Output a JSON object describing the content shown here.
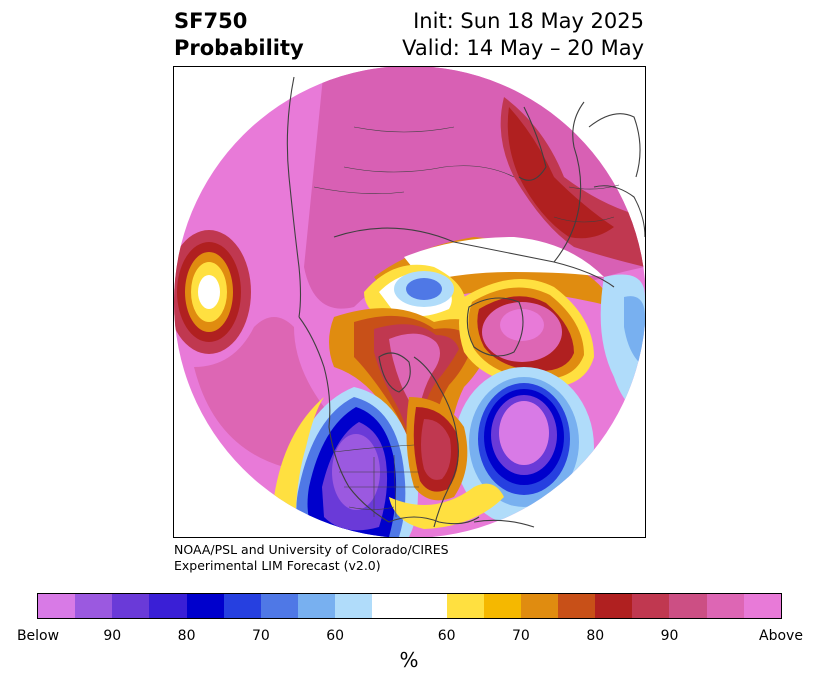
{
  "title": {
    "left_line1": "SF750",
    "left_line2": "Probability",
    "right_line1": "Init: Sun 18 May 2025",
    "right_line2": "Valid: 14 May – 20 May"
  },
  "credit": {
    "line1": "NOAA/PSL and University of Colorado/CIRES",
    "line2": "Experimental LIM Forecast (v2.0)"
  },
  "colorbar": {
    "unit": "%",
    "colors": [
      "#d87ae6",
      "#9b59e0",
      "#6a3ad8",
      "#3a1fd6",
      "#0000cc",
      "#2640e0",
      "#4f78e6",
      "#78b0f0",
      "#b0dcfa",
      "#ffffff",
      "#ffe040",
      "#f5b800",
      "#e08c10",
      "#c85018",
      "#b02020",
      "#c03850",
      "#cc4f84",
      "#dd66b4",
      "#e87ad8"
    ],
    "segment_widths": [
      1,
      1,
      1,
      1,
      1,
      1,
      1,
      1,
      1,
      2,
      1,
      1,
      1,
      1,
      1,
      1,
      1,
      1,
      1
    ],
    "tick_labels": [
      "Below",
      "90",
      "80",
      "70",
      "60",
      "60",
      "70",
      "80",
      "90",
      "Above"
    ]
  },
  "map": {
    "projection": "north-polar-stereographic",
    "region": "Northern Hemisphere (North America / Arctic / Eurasia)",
    "colors": {
      "above_max": "#e87ad8",
      "above_high": "#d860b4",
      "above_mid": "#c03850",
      "above_red": "#b02020",
      "above_orange": "#c85018",
      "above_amber": "#e08c10",
      "above_yellow": "#ffe040",
      "below_light": "#b0dcfa",
      "below_mid": "#4f78e6",
      "below_deep": "#0000cc",
      "below_purple": "#6a3ad8",
      "below_max": "#d87ae6",
      "coast": "#404040"
    }
  }
}
